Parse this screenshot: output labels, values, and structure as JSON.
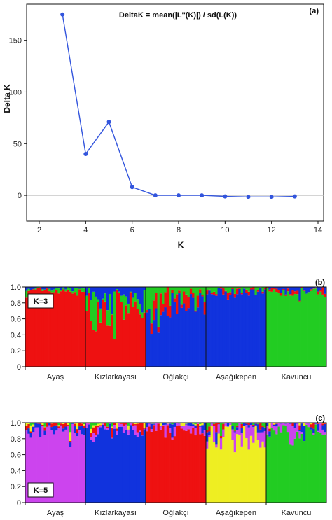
{
  "chart_data": [
    {
      "type": "line",
      "panel_label": "(a)",
      "title": "DeltaK = mean(|L''(K)|) / sd(L(K))",
      "xlabel": "K",
      "ylabel": "Delta K",
      "xlim": [
        2,
        14
      ],
      "ylim": [
        -25,
        185
      ],
      "xticks": [
        2,
        4,
        6,
        8,
        10,
        12,
        14
      ],
      "yticks": [
        0,
        50,
        100,
        150
      ],
      "xtick_labels": [
        "2",
        "4",
        "6",
        "8",
        "10",
        "12",
        "14"
      ],
      "ytick_labels": [
        "0",
        "50",
        "100",
        "150"
      ],
      "x": [
        3,
        4,
        5,
        6,
        7,
        8,
        9,
        10,
        11,
        12,
        13
      ],
      "y": [
        175,
        40,
        71,
        8,
        0,
        0,
        0,
        -1,
        -1.5,
        -1.5,
        -1
      ],
      "color": "#3355dd",
      "zero_line": true
    },
    {
      "type": "bar",
      "stacked": true,
      "panel_label": "(b)",
      "k_label": "K=3",
      "ylim": [
        0,
        1.0
      ],
      "yticks": [
        0,
        0.2,
        0.4,
        0.6,
        0.8,
        1.0
      ],
      "ytick_labels": [
        "0",
        "0.2",
        "0.4",
        "0.6",
        "0.8",
        "1.0"
      ],
      "populations": [
        "Ayaş",
        "Kızlarkayası",
        "Oğlakçı",
        "Aşağıkepen",
        "Kavuncu"
      ],
      "cluster_colors": [
        "#ee1111",
        "#22cc22",
        "#1133dd"
      ],
      "dominant_cluster": [
        0,
        0,
        2,
        2,
        1
      ],
      "dominant_mean": [
        0.95,
        0.68,
        0.78,
        0.93,
        0.94
      ]
    },
    {
      "type": "bar",
      "stacked": true,
      "panel_label": "(c)",
      "k_label": "K=5",
      "ylim": [
        0,
        1.0
      ],
      "yticks": [
        0,
        0.2,
        0.4,
        0.6,
        0.8,
        1.0
      ],
      "ytick_labels": [
        "0",
        "0.2",
        "0.4",
        "0.6",
        "0.8",
        "1.0"
      ],
      "populations": [
        "Ayaş",
        "Kızlarkayası",
        "Oğlakçı",
        "Aşağıkepen",
        "Kavuncu"
      ],
      "cluster_colors": [
        "#cc44ee",
        "#1133dd",
        "#ee1111",
        "#eeee22",
        "#22cc22"
      ],
      "dominant_cluster": [
        0,
        1,
        2,
        3,
        4
      ],
      "dominant_mean": [
        0.9,
        0.88,
        0.9,
        0.8,
        0.9
      ]
    }
  ]
}
